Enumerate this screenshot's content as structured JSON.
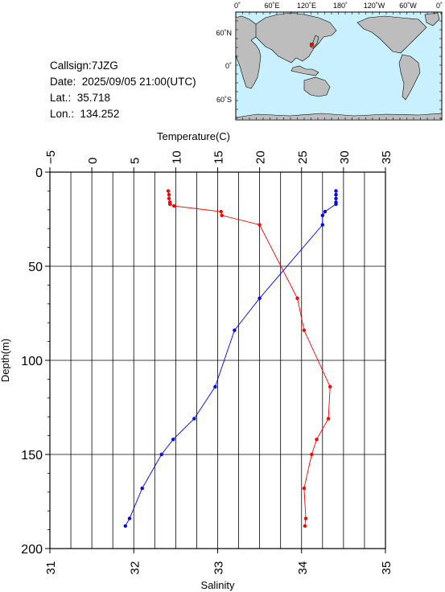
{
  "station": {
    "callsign": "Callsign:7JZG",
    "date": "Date:  2025/09/05 21:00(UTC)",
    "lat": "Lat.:  35.718",
    "lon": "Lon.:  134.252"
  },
  "map": {
    "top_lon_labels": [
      "0˚",
      "60˚E",
      "120˚E",
      "180˚",
      "120˚W",
      "60˚W",
      "0˚"
    ],
    "lat_labels": [
      "60˚N",
      "0˚",
      "60˚S"
    ],
    "ocean_color": "#c8f0ff",
    "land_color": "#bdbdbd",
    "marker_color": "#ff0000"
  },
  "chart_data": {
    "type": "line",
    "title": "",
    "ylabel": "Depth(m)",
    "ylim": [
      0,
      200
    ],
    "y_ticks": [
      0,
      50,
      100,
      150,
      200
    ],
    "y_inverted": true,
    "grid": true,
    "top_axis": {
      "label": "Temperature(C)",
      "range": [
        -5,
        35
      ],
      "ticks": [
        -5,
        0,
        5,
        10,
        15,
        20,
        25,
        30,
        35
      ],
      "tick_labels": [
        "−5",
        "0",
        "5",
        "10",
        "15",
        "20",
        "25",
        "30",
        "35"
      ]
    },
    "bottom_axis": {
      "label": "Salinity",
      "range": [
        31,
        35
      ],
      "ticks": [
        31,
        32,
        33,
        34,
        35
      ]
    },
    "series": [
      {
        "axis": "top",
        "color": "#ff0000",
        "points": [
          [
            9.1,
            10
          ],
          [
            9.2,
            12
          ],
          [
            9.2,
            14
          ],
          [
            9.3,
            16
          ],
          [
            9.3,
            17
          ],
          [
            9.8,
            18
          ],
          [
            15.4,
            21
          ],
          [
            15.5,
            23
          ],
          [
            20,
            28
          ],
          [
            24.5,
            67
          ],
          [
            25.3,
            84
          ],
          [
            28.4,
            114
          ],
          [
            28.2,
            131
          ],
          [
            26.8,
            142
          ],
          [
            26.2,
            150
          ],
          [
            25.3,
            168
          ],
          [
            25.5,
            184
          ],
          [
            25.4,
            188
          ]
        ]
      },
      {
        "axis": "bottom",
        "color": "#0000ff",
        "points": [
          [
            34.41,
            10
          ],
          [
            34.41,
            12
          ],
          [
            34.41,
            14
          ],
          [
            34.41,
            16
          ],
          [
            34.41,
            17
          ],
          [
            34.28,
            21
          ],
          [
            34.25,
            23
          ],
          [
            34.25,
            28
          ],
          [
            33.5,
            67
          ],
          [
            33.2,
            84
          ],
          [
            32.97,
            114
          ],
          [
            32.72,
            131
          ],
          [
            32.47,
            142
          ],
          [
            32.33,
            150
          ],
          [
            32.1,
            168
          ],
          [
            31.95,
            184
          ],
          [
            31.9,
            188
          ]
        ]
      }
    ]
  }
}
